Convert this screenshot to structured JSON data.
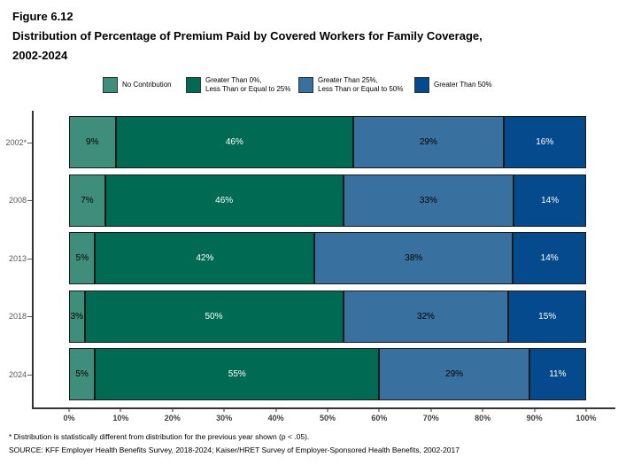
{
  "figure": {
    "label": "Figure 6.12",
    "title_line1": "Distribution of Percentage of Premium Paid by Covered Workers for Family Coverage,",
    "title_line2": "2002-2024"
  },
  "legend": {
    "items": [
      {
        "lines": [
          "No Contribution"
        ],
        "color": "#3F8E7B"
      },
      {
        "lines": [
          "Greater Than 0%,",
          "Less Than or Equal to 25%"
        ],
        "color": "#006A52"
      },
      {
        "lines": [
          "Greater Than 25%,",
          "Less Than or Equal to 50%"
        ],
        "color": "#38709F"
      },
      {
        "lines": [
          "Greater Than 50%"
        ],
        "color": "#054A8C"
      }
    ]
  },
  "chart_data": {
    "type": "bar",
    "orientation": "horizontal",
    "stacked": true,
    "title": "Distribution of Percentage of Premium Paid by Covered Workers for Family Coverage, 2002-2024",
    "categories": [
      "2002*",
      "2008",
      "2013",
      "2018",
      "2024"
    ],
    "series": [
      {
        "name": "No Contribution",
        "color": "#3F8E7B",
        "label_color": "#000000",
        "values": [
          9,
          7,
          5,
          3,
          5
        ]
      },
      {
        "name": "Greater Than 0%, Less Than or Equal to 25%",
        "color": "#006A52",
        "label_color": "#FFFFFF",
        "values": [
          46,
          46,
          42,
          50,
          55
        ]
      },
      {
        "name": "Greater Than 25%, Less Than or Equal to 50%",
        "color": "#38709F",
        "label_color": "#000000",
        "values": [
          29,
          33,
          38,
          32,
          29
        ]
      },
      {
        "name": "Greater Than 50%",
        "color": "#054A8C",
        "label_color": "#FFFFFF",
        "values": [
          16,
          14,
          14,
          15,
          11
        ]
      }
    ],
    "value_suffix": "%",
    "xlim": [
      0,
      100
    ],
    "x_ticks": [
      "0%",
      "10%",
      "20%",
      "30%",
      "40%",
      "50%",
      "60%",
      "70%",
      "80%",
      "90%",
      "100%"
    ],
    "grid": false,
    "legend_position": "top"
  },
  "footnotes": {
    "asterisk": "* Distribution is statistically different from distribution for the previous year shown (p < .05).",
    "source": "SOURCE: KFF Employer Health Benefits Survey, 2018-2024; Kaiser/HRET Survey of Employer-Sponsored Health Benefits, 2002-2017"
  }
}
